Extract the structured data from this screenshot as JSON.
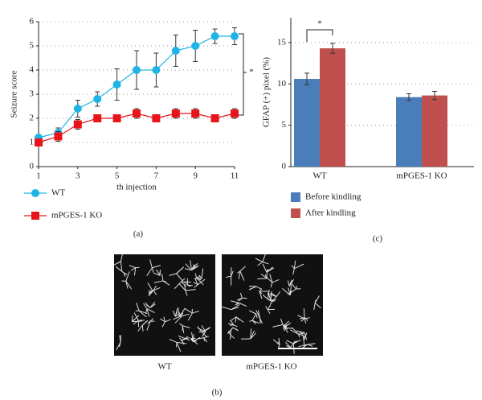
{
  "chart_data": [
    {
      "type": "line",
      "panel": "(a)",
      "xlabel": "th injection",
      "ylabel": "Seizure score",
      "annotation": "*",
      "x": [
        1,
        2,
        3,
        4,
        5,
        6,
        7,
        8,
        9,
        10,
        11
      ],
      "xlim": [
        1,
        11
      ],
      "xticks": [
        1,
        3,
        5,
        7,
        9,
        11
      ],
      "ylim": [
        0,
        6
      ],
      "yticks": [
        0,
        1,
        2,
        3,
        4,
        5,
        6
      ],
      "grid": true,
      "series": [
        {
          "name": "WT",
          "color": "#1fb4e6",
          "marker": "circle",
          "values": [
            1.2,
            1.4,
            2.4,
            2.8,
            3.4,
            4.0,
            4.0,
            4.8,
            5.0,
            5.4,
            5.4
          ],
          "errors": [
            0.1,
            0.2,
            0.35,
            0.3,
            0.65,
            0.8,
            0.7,
            0.65,
            0.65,
            0.3,
            0.35
          ]
        },
        {
          "name": "mPGES-1 KO",
          "color": "#e8141a",
          "marker": "square",
          "values": [
            1.0,
            1.25,
            1.75,
            2.0,
            2.0,
            2.2,
            2.0,
            2.2,
            2.2,
            2.0,
            2.2
          ],
          "errors": [
            0.1,
            0.2,
            0.2,
            0.05,
            0.05,
            0.2,
            0.05,
            0.2,
            0.2,
            0.05,
            0.2
          ]
        }
      ]
    },
    {
      "type": "bar",
      "panel": "(c)",
      "ylabel": "GFAP (+) pixel (%)",
      "annotation": "*",
      "categories": [
        "WT",
        "mPGES-1 KO"
      ],
      "ylim": [
        0,
        18
      ],
      "yticks": [
        0,
        5,
        10,
        15
      ],
      "grid": true,
      "series": [
        {
          "name": "Before kindling",
          "color": "#4a7ebb",
          "values": [
            10.6,
            8.4
          ],
          "errors": [
            0.7,
            0.4
          ]
        },
        {
          "name": "After kindling",
          "color": "#c0504d",
          "values": [
            14.3,
            8.6
          ],
          "errors": [
            0.6,
            0.5
          ]
        }
      ]
    }
  ],
  "images": {
    "panel": "(b)",
    "labels": [
      "WT",
      "mPGES-1 KO"
    ]
  }
}
